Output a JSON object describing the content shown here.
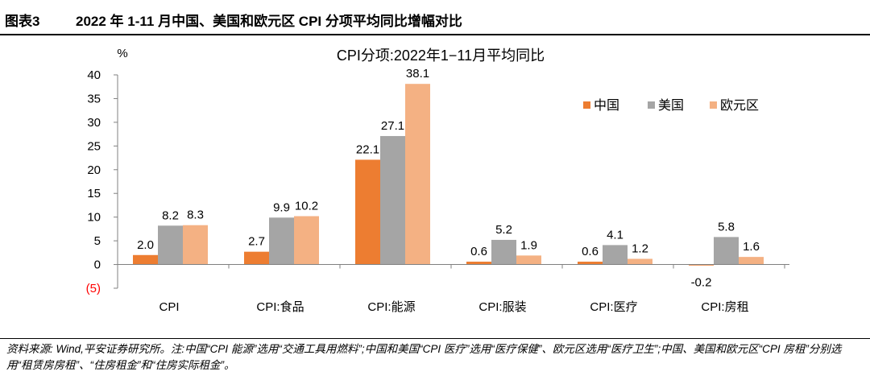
{
  "figure": {
    "label": "图表3",
    "title": "2022 年 1-11 月中国、美国和欧元区 CPI 分项平均同比增幅对比"
  },
  "footnote": "资料来源: Wind,平安证券研究所。注:中国“CPI 能源”选用“交通工具用燃料”;中国和美国“CPI 医疗”选用“医疗保健”、欧元区选用“医疗卫生”;中国、美国和欧元区“CPI 房租”分别选用“租赁房房租”、“住房租金”和“住房实际租金”。",
  "colors": {
    "中国": "#ED7D31",
    "美国": "#A5A5A5",
    "欧元区": "#F4B183",
    "negative_tick": "#FF0000"
  },
  "chart_data": {
    "type": "bar",
    "title": "CPI分项:2022年1−11月平均同比",
    "ylabel": "%",
    "xlabel": "",
    "ylim": [
      -5,
      40
    ],
    "yticks": [
      -5,
      0,
      5,
      10,
      15,
      20,
      25,
      30,
      35,
      40
    ],
    "ytick_labels": [
      "(5)",
      "0",
      "5",
      "10",
      "15",
      "20",
      "25",
      "30",
      "35",
      "40"
    ],
    "grid": false,
    "legend_position": "right",
    "categories": [
      "CPI",
      "CPI:食品",
      "CPI:能源",
      "CPI:服装",
      "CPI:医疗",
      "CPI:房租"
    ],
    "series": [
      {
        "name": "中国",
        "values": [
          2.0,
          2.7,
          22.1,
          0.6,
          0.6,
          -0.2
        ]
      },
      {
        "name": "美国",
        "values": [
          8.2,
          9.9,
          27.1,
          5.2,
          4.1,
          5.8
        ]
      },
      {
        "name": "欧元区",
        "values": [
          8.3,
          10.2,
          38.1,
          1.9,
          1.2,
          1.6
        ]
      }
    ]
  }
}
